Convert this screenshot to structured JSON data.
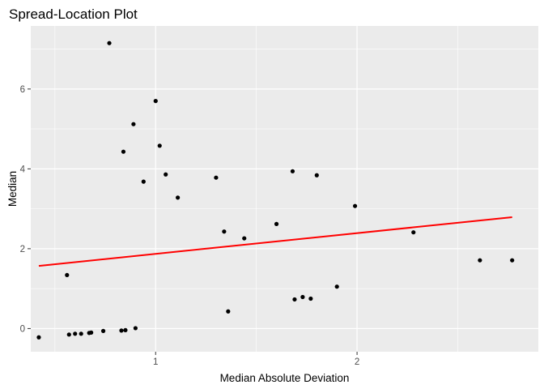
{
  "chart_data": {
    "type": "scatter",
    "title": "Spread-Location Plot",
    "xlabel": "Median Absolute Deviation",
    "ylabel": "Median",
    "xlim": [
      0.38,
      2.9
    ],
    "ylim": [
      -0.58,
      7.58
    ],
    "x_ticks": [
      1,
      2
    ],
    "x_minor_ticks": [
      0.5,
      1.5,
      2.5
    ],
    "y_ticks": [
      0,
      2,
      4,
      6
    ],
    "y_minor_ticks": [
      1,
      3,
      5,
      7
    ],
    "grid": true,
    "panel_background": "#ebebeb",
    "gridline_color": "#ffffff",
    "point_color": "#000000",
    "trend_color": "#ff0000",
    "points": [
      {
        "x": 0.42,
        "y": -0.22
      },
      {
        "x": 0.56,
        "y": 1.34
      },
      {
        "x": 0.57,
        "y": -0.15
      },
      {
        "x": 0.6,
        "y": -0.13
      },
      {
        "x": 0.63,
        "y": -0.13
      },
      {
        "x": 0.67,
        "y": -0.11
      },
      {
        "x": 0.68,
        "y": -0.1
      },
      {
        "x": 0.74,
        "y": -0.06
      },
      {
        "x": 0.77,
        "y": 7.15
      },
      {
        "x": 0.83,
        "y": -0.05
      },
      {
        "x": 0.84,
        "y": 4.43
      },
      {
        "x": 0.85,
        "y": -0.04
      },
      {
        "x": 0.89,
        "y": 5.12
      },
      {
        "x": 0.9,
        "y": 0.01
      },
      {
        "x": 0.94,
        "y": 3.68
      },
      {
        "x": 1.0,
        "y": 5.7
      },
      {
        "x": 1.02,
        "y": 4.58
      },
      {
        "x": 1.05,
        "y": 3.86
      },
      {
        "x": 1.11,
        "y": 3.28
      },
      {
        "x": 1.3,
        "y": 3.78
      },
      {
        "x": 1.34,
        "y": 2.43
      },
      {
        "x": 1.36,
        "y": 0.43
      },
      {
        "x": 1.44,
        "y": 2.26
      },
      {
        "x": 1.6,
        "y": 2.62
      },
      {
        "x": 1.68,
        "y": 3.94
      },
      {
        "x": 1.69,
        "y": 0.73
      },
      {
        "x": 1.73,
        "y": 0.79
      },
      {
        "x": 1.77,
        "y": 0.75
      },
      {
        "x": 1.8,
        "y": 3.84
      },
      {
        "x": 1.9,
        "y": 1.05
      },
      {
        "x": 1.99,
        "y": 3.07
      },
      {
        "x": 2.28,
        "y": 2.41
      },
      {
        "x": 2.61,
        "y": 1.71
      },
      {
        "x": 2.77,
        "y": 1.71
      }
    ],
    "trend_line": {
      "x": [
        0.42,
        2.77
      ],
      "y": [
        1.57,
        2.79
      ]
    }
  }
}
